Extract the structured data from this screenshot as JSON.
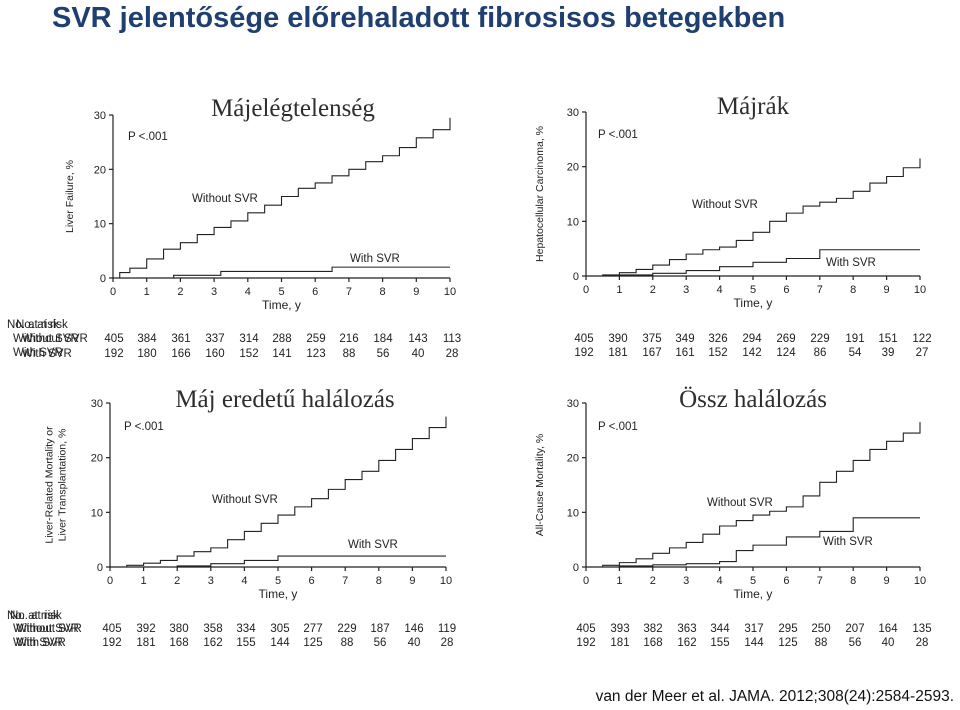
{
  "title": "SVR jelentősége előrehaladott fibrosisos betegekben",
  "citation": "van der Meer et al. JAMA. 2012;308(24):2584-2593.",
  "colors": {
    "title": "#1f3f70",
    "ink": "#222222"
  },
  "chart_data": [
    {
      "type": "line",
      "heading": "Májelégtelenség",
      "ylabel": "Liver Failure, %",
      "ylabel_lines": [
        "Liver Failure, %"
      ],
      "xlabel": "Time, y",
      "p_value": "P <.001",
      "ylim": [
        0,
        30
      ],
      "yticks": [
        0,
        10,
        20,
        30
      ],
      "xlim": [
        0,
        10
      ],
      "xticks": [
        0,
        1,
        2,
        3,
        4,
        5,
        6,
        7,
        8,
        9,
        10
      ],
      "grid": false,
      "series": [
        {
          "name": "Without SVR",
          "x": [
            0,
            0.2,
            0.5,
            1,
            1.5,
            2,
            2.5,
            3,
            3.5,
            4,
            4.5,
            5,
            5.5,
            6,
            6.5,
            7,
            7.5,
            8,
            8.5,
            9,
            9.5,
            10
          ],
          "y": [
            0,
            1,
            1.8,
            3.5,
            5.3,
            6.5,
            8,
            9.3,
            10.5,
            12,
            13.4,
            15,
            16.5,
            17.5,
            18.8,
            20,
            21.4,
            22.5,
            24,
            25.8,
            27.3,
            29.5
          ]
        },
        {
          "name": "With SVR",
          "x": [
            0,
            1.8,
            3.2,
            6.5,
            10
          ],
          "y": [
            0,
            0.5,
            1.2,
            2,
            2
          ]
        }
      ],
      "label_without": "Without SVR",
      "label_with": "With SVR",
      "risk_table": {
        "header": "No. at risk",
        "rows": [
          {
            "label": "Without SVR",
            "values": [
              "405",
              "384",
              "361",
              "337",
              "314",
              "288",
              "259",
              "216",
              "184",
              "143",
              "113"
            ]
          },
          {
            "label": "With SVR",
            "values": [
              "192",
              "180",
              "166",
              "160",
              "152",
              "141",
              "123",
              "88",
              "56",
              "40",
              "28"
            ]
          }
        ]
      }
    },
    {
      "type": "line",
      "heading": "Májrák",
      "ylabel": "Hepatocellular Carcinoma, %",
      "ylabel_lines": [
        "Hepatocellular Carcinoma, %"
      ],
      "xlabel": "Time, y",
      "p_value": "P <.001",
      "ylim": [
        0,
        30
      ],
      "yticks": [
        0,
        10,
        20,
        30
      ],
      "xlim": [
        0,
        10
      ],
      "xticks": [
        0,
        1,
        2,
        3,
        4,
        5,
        6,
        7,
        8,
        9,
        10
      ],
      "grid": false,
      "series": [
        {
          "name": "Without SVR",
          "x": [
            0,
            0.5,
            1,
            1.5,
            2,
            2.5,
            3,
            3.5,
            4,
            4.5,
            5,
            5.5,
            6,
            6.5,
            7,
            7.5,
            8,
            8.5,
            9,
            9.5,
            10
          ],
          "y": [
            0,
            0.2,
            0.6,
            1.2,
            2,
            3,
            4,
            4.8,
            5.3,
            6.5,
            8,
            10,
            11.5,
            12.8,
            13.5,
            14.2,
            15.5,
            17,
            18.2,
            19.8,
            21.5
          ]
        },
        {
          "name": "With SVR",
          "x": [
            0,
            1,
            2,
            3,
            4,
            5,
            6,
            7,
            10
          ],
          "y": [
            0,
            0.2,
            0.5,
            1,
            1.7,
            2.5,
            3.2,
            4.8,
            4.8
          ]
        }
      ],
      "label_without": "Without SVR",
      "label_with": "With SVR",
      "risk_table": {
        "header": "No. at risk",
        "rows": [
          {
            "label": "Without SVR",
            "values": [
              "405",
              "390",
              "375",
              "349",
              "326",
              "294",
              "269",
              "229",
              "191",
              "151",
              "122"
            ]
          },
          {
            "label": "With SVR",
            "values": [
              "192",
              "181",
              "167",
              "161",
              "152",
              "142",
              "124",
              "86",
              "54",
              "39",
              "27"
            ]
          }
        ]
      }
    },
    {
      "type": "line",
      "heading": "Máj eredetű halálozás",
      "ylabel": "Liver-Related Mortality or Liver Transplantation, %",
      "ylabel_lines": [
        "Liver-Related Mortality or",
        "Liver Transplantation, %"
      ],
      "xlabel": "Time, y",
      "p_value": "P <.001",
      "ylim": [
        0,
        30
      ],
      "yticks": [
        0,
        10,
        20,
        30
      ],
      "xlim": [
        0,
        10
      ],
      "xticks": [
        0,
        1,
        2,
        3,
        4,
        5,
        6,
        7,
        8,
        9,
        10
      ],
      "grid": false,
      "series": [
        {
          "name": "Without SVR",
          "x": [
            0,
            0.5,
            1,
            1.5,
            2,
            2.5,
            3,
            3.5,
            4,
            4.5,
            5,
            5.5,
            6,
            6.5,
            7,
            7.5,
            8,
            8.5,
            9,
            9.5,
            10
          ],
          "y": [
            0,
            0.3,
            0.7,
            1.2,
            2,
            2.8,
            3.5,
            5,
            6.5,
            8,
            9.5,
            11,
            12.5,
            14.2,
            16,
            17.5,
            19.5,
            21.5,
            23.5,
            25.5,
            27.5
          ]
        },
        {
          "name": "With SVR",
          "x": [
            0,
            2,
            3,
            4,
            5,
            10
          ],
          "y": [
            0,
            0.2,
            0.6,
            1.2,
            2,
            2
          ]
        }
      ],
      "label_without": "Without SVR",
      "label_with": "With SVR",
      "risk_table": {
        "header": "No. at risk",
        "rows": [
          {
            "label": "Without SVR",
            "values": [
              "405",
              "392",
              "380",
              "358",
              "334",
              "305",
              "277",
              "229",
              "187",
              "146",
              "119"
            ]
          },
          {
            "label": "With SVR",
            "values": [
              "192",
              "181",
              "168",
              "162",
              "155",
              "144",
              "125",
              "88",
              "56",
              "40",
              "28"
            ]
          }
        ]
      }
    },
    {
      "type": "line",
      "heading": "Össz halálozás",
      "ylabel": "All-Cause Mortality, %",
      "ylabel_lines": [
        "All-Cause Mortality, %"
      ],
      "xlabel": "Time, y",
      "p_value": "P <.001",
      "ylim": [
        0,
        30
      ],
      "yticks": [
        0,
        10,
        20,
        30
      ],
      "xlim": [
        0,
        10
      ],
      "xticks": [
        0,
        1,
        2,
        3,
        4,
        5,
        6,
        7,
        8,
        9,
        10
      ],
      "grid": false,
      "series": [
        {
          "name": "Without SVR",
          "x": [
            0,
            0.5,
            1,
            1.5,
            2,
            2.5,
            3,
            3.5,
            4,
            4.5,
            5,
            5.5,
            6,
            6.5,
            7,
            7.5,
            8,
            8.5,
            9,
            9.5,
            10
          ],
          "y": [
            0,
            0.3,
            0.8,
            1.5,
            2.5,
            3.5,
            4.5,
            6,
            7.5,
            8.5,
            9.5,
            10.2,
            11,
            13,
            15.5,
            17.5,
            19.5,
            21.5,
            23,
            24.5,
            26.5
          ]
        },
        {
          "name": "With SVR",
          "x": [
            0,
            1,
            2,
            3,
            4,
            4.5,
            5,
            6,
            7,
            8,
            10
          ],
          "y": [
            0,
            0.2,
            0.4,
            0.6,
            1,
            3,
            4,
            5.5,
            6.5,
            9,
            9
          ]
        }
      ],
      "label_without": "Without SVR",
      "label_with": "With SVR",
      "risk_table": {
        "header": "No. at risk",
        "rows": [
          {
            "label": "Without SVR",
            "values": [
              "405",
              "393",
              "382",
              "363",
              "344",
              "317",
              "295",
              "250",
              "207",
              "164",
              "135"
            ]
          },
          {
            "label": "With SVR",
            "values": [
              "192",
              "181",
              "168",
              "162",
              "155",
              "144",
              "125",
              "88",
              "56",
              "40",
              "28"
            ]
          }
        ]
      }
    }
  ]
}
